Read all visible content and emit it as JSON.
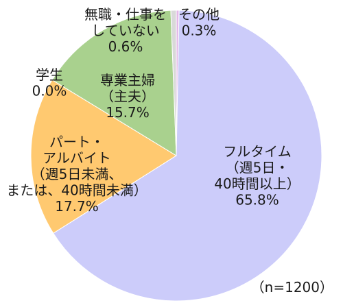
{
  "chart_data": {
    "type": "pie",
    "start_angle_deg": 0,
    "direction": "clockwise",
    "slices": [
      {
        "name": "その他",
        "label_lines": [
          "その他"
        ],
        "value_label": "0.3%",
        "value": 0.3,
        "color": "#e3b6e8"
      },
      {
        "name": "フルタイム（週5日・40時間以上）",
        "label_lines": [
          "フルタイム",
          "（週5日・",
          "40時間以上）"
        ],
        "value_label": "65.8%",
        "value": 65.8,
        "color": "#ccccfa"
      },
      {
        "name": "パート・アルバイト（週5日未満、または、40時間未満）",
        "label_lines": [
          "パート・",
          "アルバイト",
          "（週5日未満、",
          "または、40時間未満）"
        ],
        "value_label": "17.7%",
        "value": 17.7,
        "color": "#ffc970"
      },
      {
        "name": "学生",
        "label_lines": [
          "学生"
        ],
        "value_label": "0.0%",
        "value": 0.0,
        "color": "#ffe08a"
      },
      {
        "name": "専業主婦（主夫）",
        "label_lines": [
          "専業主婦",
          "（主夫）"
        ],
        "value_label": "15.7%",
        "value": 15.7,
        "color": "#a9d18e"
      },
      {
        "name": "無職・仕事をしていない",
        "label_lines": [
          "無職・仕事を",
          "していない"
        ],
        "value_label": "0.6%",
        "value": 0.6,
        "color": "#d9d9d9"
      }
    ],
    "note": "（n=1200）"
  }
}
